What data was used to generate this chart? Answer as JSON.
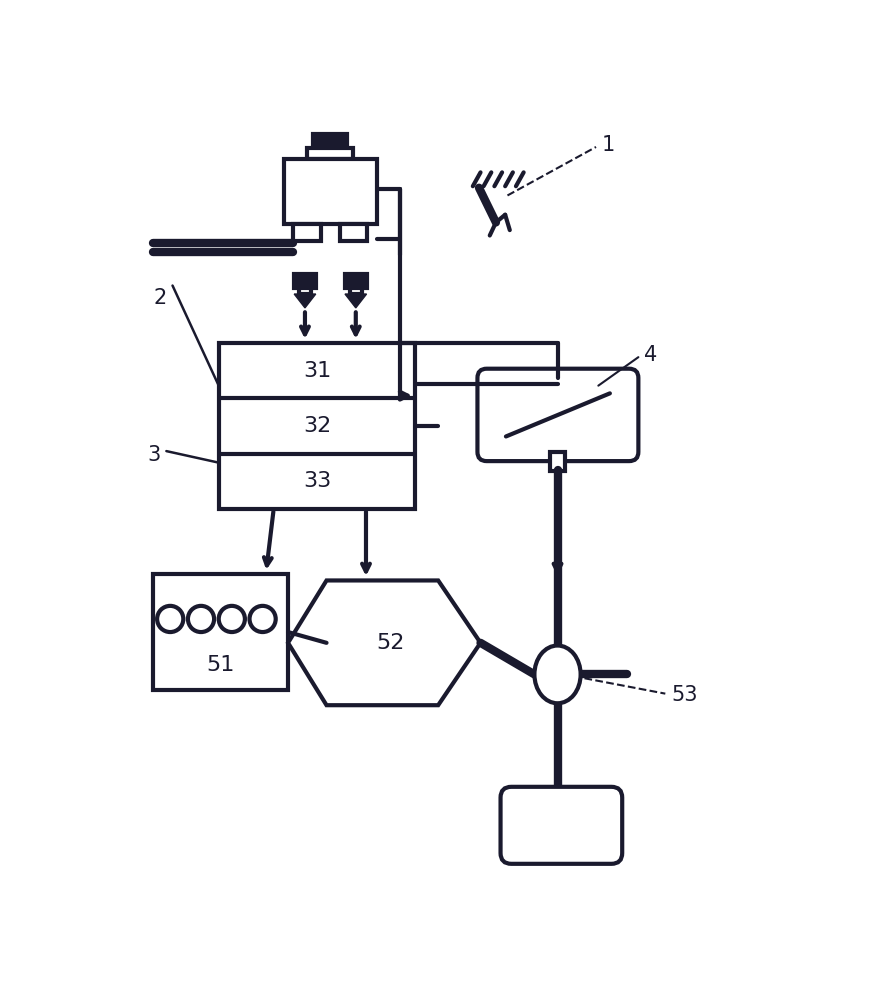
{
  "bg": "#ffffff",
  "lc": "#1a1a2e",
  "lw": 3.0,
  "tlw": 6.0,
  "fs_label": 15,
  "fs_inner": 16
}
